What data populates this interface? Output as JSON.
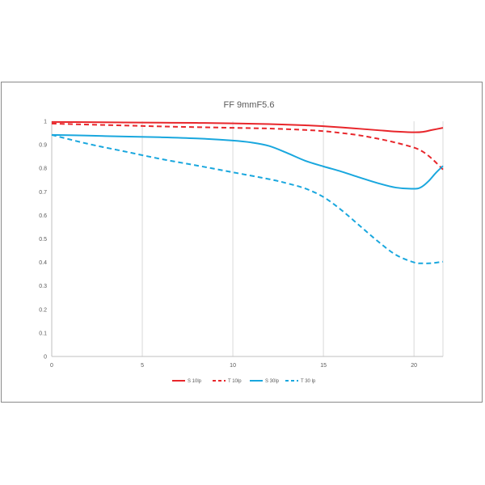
{
  "chart_data": {
    "type": "line",
    "title": "FF  9mmF5.6",
    "xlabel": "",
    "ylabel": "",
    "xlim": [
      0,
      21.6
    ],
    "ylim": [
      0,
      1
    ],
    "x_ticks": [
      0,
      5,
      10,
      15,
      20
    ],
    "y_ticks": [
      0,
      0.1,
      0.2,
      0.3,
      0.4,
      0.5,
      0.6,
      0.7,
      0.8,
      0.9,
      1
    ],
    "grid": "vertical",
    "legend_position": "bottom",
    "series": [
      {
        "name": "S 10lp",
        "color": "#e8262b",
        "dash": "solid",
        "x": [
          0,
          2,
          4,
          6,
          8,
          10,
          12,
          14,
          15,
          16,
          17,
          18,
          19,
          20,
          20.5,
          21,
          21.6
        ],
        "y": [
          0.997,
          0.996,
          0.995,
          0.994,
          0.993,
          0.991,
          0.988,
          0.983,
          0.979,
          0.974,
          0.968,
          0.962,
          0.956,
          0.953,
          0.955,
          0.963,
          0.972
        ]
      },
      {
        "name": "T 10lp",
        "color": "#e8262b",
        "dash": "dashed",
        "x": [
          0,
          2,
          4,
          6,
          8,
          10,
          12,
          14,
          15,
          16,
          17,
          18,
          19,
          20,
          20.5,
          21,
          21.6
        ],
        "y": [
          0.99,
          0.986,
          0.982,
          0.978,
          0.975,
          0.972,
          0.969,
          0.963,
          0.958,
          0.95,
          0.94,
          0.926,
          0.909,
          0.888,
          0.87,
          0.84,
          0.795
        ]
      },
      {
        "name": "S 30lp",
        "color": "#19a7de",
        "dash": "solid",
        "x": [
          0,
          2,
          4,
          6,
          8,
          10,
          11,
          12,
          13,
          14,
          15,
          16,
          17,
          18,
          19,
          20,
          20.4,
          20.8,
          21.2,
          21.6
        ],
        "y": [
          0.942,
          0.939,
          0.935,
          0.932,
          0.927,
          0.918,
          0.91,
          0.895,
          0.865,
          0.832,
          0.808,
          0.786,
          0.761,
          0.737,
          0.718,
          0.713,
          0.72,
          0.745,
          0.78,
          0.81
        ]
      },
      {
        "name": "T 30 lp",
        "color": "#19a7de",
        "dash": "dashed",
        "x": [
          0,
          2,
          4,
          6,
          8,
          10,
          12,
          13,
          14,
          15,
          16,
          17,
          18,
          19,
          20,
          20.5,
          21,
          21.6
        ],
        "y": [
          0.942,
          0.904,
          0.872,
          0.84,
          0.812,
          0.783,
          0.754,
          0.736,
          0.714,
          0.678,
          0.622,
          0.556,
          0.49,
          0.432,
          0.4,
          0.396,
          0.397,
          0.403
        ]
      }
    ]
  }
}
